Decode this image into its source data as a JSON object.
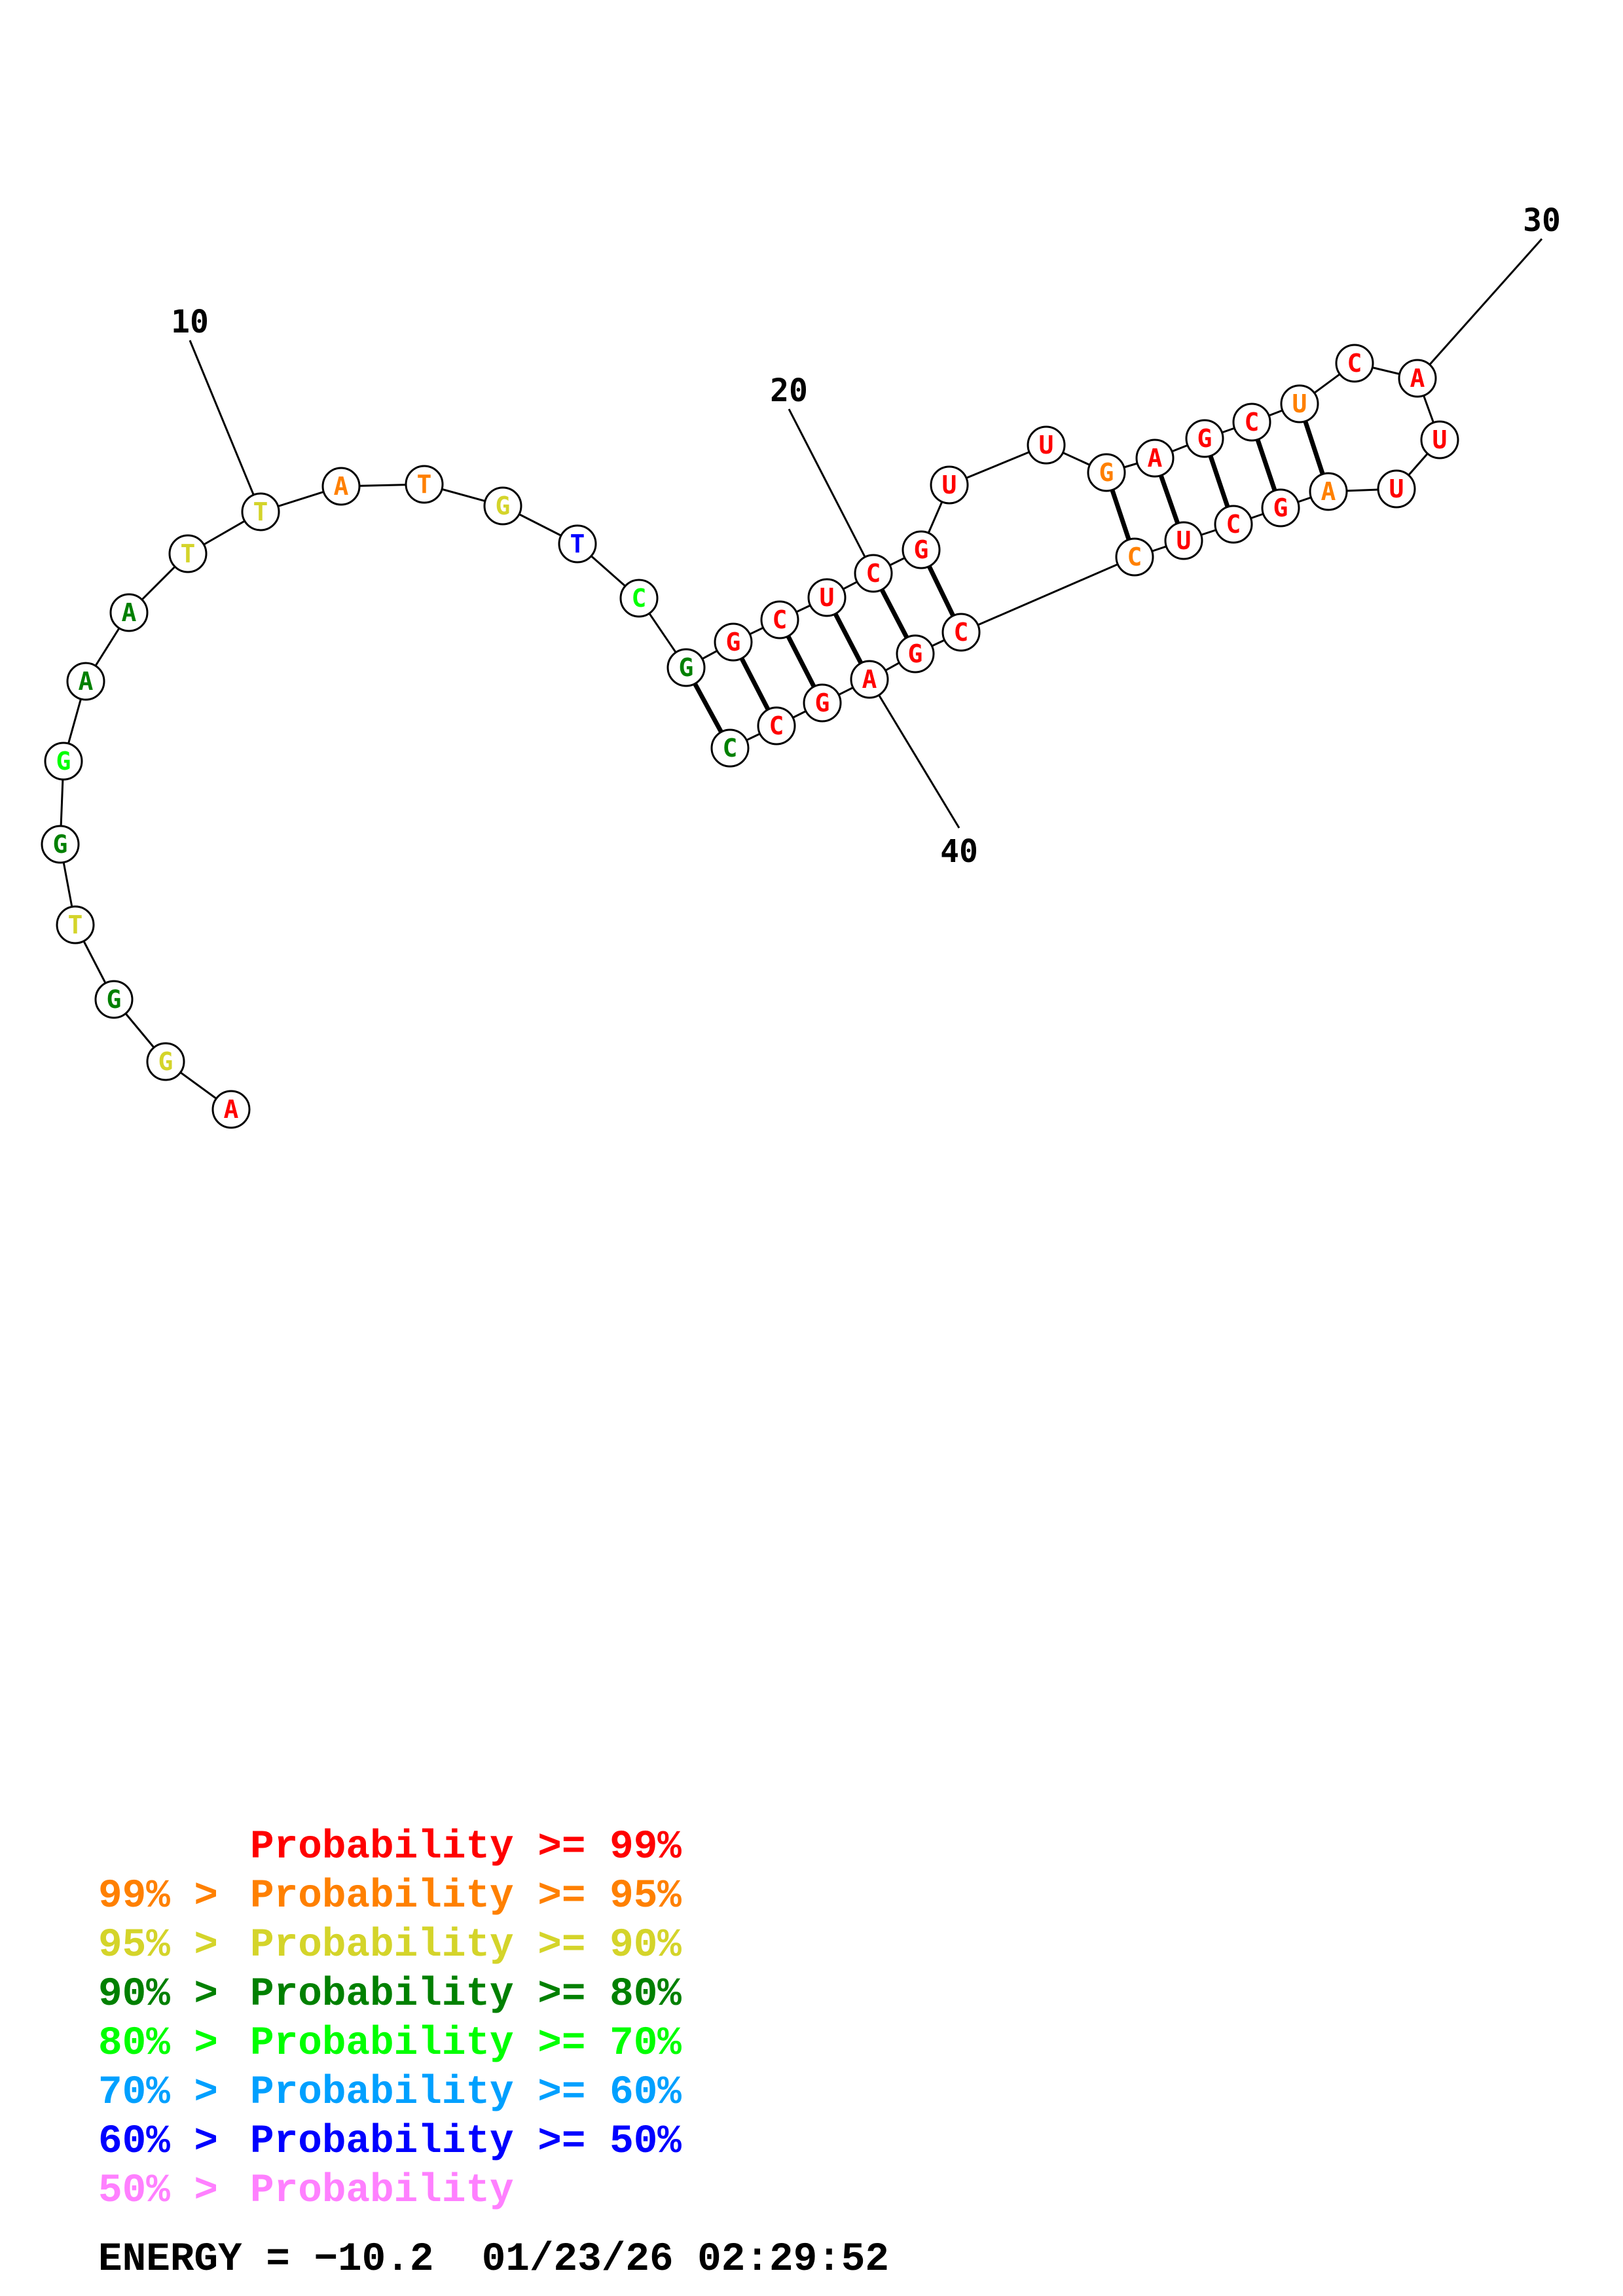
{
  "colors": {
    "p99": "#ff0000",
    "p95": "#ff8000",
    "p90": "#d4d42a",
    "p80": "#008000",
    "p70": "#00ff00",
    "p60": "#00a0ff",
    "p50": "#0000ff",
    "plow": "#ff80ff"
  },
  "nucleotides": [
    {
      "i": 1,
      "base": "A",
      "color": "p99"
    },
    {
      "i": 2,
      "base": "G",
      "color": "p90"
    },
    {
      "i": 3,
      "base": "G",
      "color": "p80"
    },
    {
      "i": 4,
      "base": "T",
      "color": "p90"
    },
    {
      "i": 5,
      "base": "G",
      "color": "p80"
    },
    {
      "i": 6,
      "base": "G",
      "color": "p70"
    },
    {
      "i": 7,
      "base": "A",
      "color": "p80"
    },
    {
      "i": 8,
      "base": "A",
      "color": "p80"
    },
    {
      "i": 9,
      "base": "T",
      "color": "p90"
    },
    {
      "i": 10,
      "base": "T",
      "color": "p90"
    },
    {
      "i": 11,
      "base": "A",
      "color": "p95"
    },
    {
      "i": 12,
      "base": "T",
      "color": "p95"
    },
    {
      "i": 13,
      "base": "G",
      "color": "p90"
    },
    {
      "i": 14,
      "base": "T",
      "color": "p50"
    },
    {
      "i": 15,
      "base": "C",
      "color": "p70"
    },
    {
      "i": 16,
      "base": "G",
      "color": "p80"
    },
    {
      "i": 17,
      "base": "G",
      "color": "p99"
    },
    {
      "i": 18,
      "base": "C",
      "color": "p99"
    },
    {
      "i": 19,
      "base": "U",
      "color": "p99"
    },
    {
      "i": 20,
      "base": "C",
      "color": "p99"
    },
    {
      "i": 21,
      "base": "G",
      "color": "p99"
    },
    {
      "i": 22,
      "base": "U",
      "color": "p99"
    },
    {
      "i": 23,
      "base": "U",
      "color": "p99"
    },
    {
      "i": 24,
      "base": "G",
      "color": "p95"
    },
    {
      "i": 25,
      "base": "A",
      "color": "p99"
    },
    {
      "i": 26,
      "base": "G",
      "color": "p99"
    },
    {
      "i": 27,
      "base": "C",
      "color": "p99"
    },
    {
      "i": 28,
      "base": "U",
      "color": "p95"
    },
    {
      "i": 29,
      "base": "C",
      "color": "p99"
    },
    {
      "i": 30,
      "base": "A",
      "color": "p99"
    },
    {
      "i": 31,
      "base": "U",
      "color": "p99"
    },
    {
      "i": 32,
      "base": "U",
      "color": "p99"
    },
    {
      "i": 33,
      "base": "A",
      "color": "p95"
    },
    {
      "i": 34,
      "base": "G",
      "color": "p99"
    },
    {
      "i": 35,
      "base": "C",
      "color": "p99"
    },
    {
      "i": 36,
      "base": "U",
      "color": "p99"
    },
    {
      "i": 37,
      "base": "C",
      "color": "p95"
    },
    {
      "i": 38,
      "base": "C",
      "color": "p99"
    },
    {
      "i": 39,
      "base": "G",
      "color": "p99"
    },
    {
      "i": 40,
      "base": "A",
      "color": "p99"
    },
    {
      "i": 41,
      "base": "G",
      "color": "p99"
    },
    {
      "i": 42,
      "base": "C",
      "color": "p99"
    },
    {
      "i": 43,
      "base": "C",
      "color": "p80"
    }
  ],
  "base_pairs": [
    [
      16,
      43
    ],
    [
      17,
      42
    ],
    [
      18,
      41
    ],
    [
      19,
      40
    ],
    [
      20,
      39
    ],
    [
      21,
      38
    ],
    [
      24,
      37
    ],
    [
      25,
      36
    ],
    [
      26,
      35
    ],
    [
      27,
      34
    ],
    [
      28,
      33
    ]
  ],
  "position_labels": [
    {
      "index": 10,
      "text": "10"
    },
    {
      "index": 20,
      "text": "20"
    },
    {
      "index": 30,
      "text": "30"
    },
    {
      "index": 40,
      "text": "40"
    }
  ],
  "legend": [
    {
      "prefix": "",
      "label": "Probability >= 99%",
      "color": "p99"
    },
    {
      "prefix": "99% > ",
      "label": "Probability >= 95%",
      "color": "p95"
    },
    {
      "prefix": "95% > ",
      "label": "Probability >= 90%",
      "color": "p90"
    },
    {
      "prefix": "90% > ",
      "label": "Probability >= 80%",
      "color": "p80"
    },
    {
      "prefix": "80% > ",
      "label": "Probability >= 70%",
      "color": "p70"
    },
    {
      "prefix": "70% > ",
      "label": "Probability >= 60%",
      "color": "p60"
    },
    {
      "prefix": "60% > ",
      "label": "Probability >= 50%",
      "color": "p50"
    },
    {
      "prefix": "50% > ",
      "label": "Probability",
      "color": "plow"
    }
  ],
  "footer": {
    "energy": "ENERGY = −10.2",
    "timestamp": "01/23/26 02:29:52"
  }
}
